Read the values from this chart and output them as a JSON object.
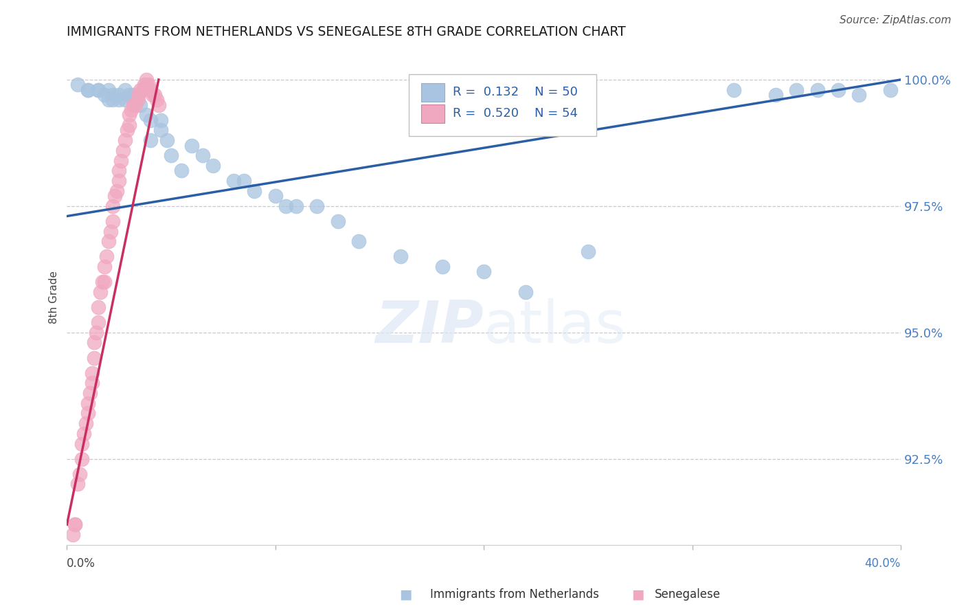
{
  "title": "IMMIGRANTS FROM NETHERLANDS VS SENEGALESE 8TH GRADE CORRELATION CHART",
  "source": "Source: ZipAtlas.com",
  "ylabel": "8th Grade",
  "ytick_labels": [
    "92.5%",
    "95.0%",
    "97.5%",
    "100.0%"
  ],
  "ytick_values": [
    0.925,
    0.95,
    0.975,
    1.0
  ],
  "xlim": [
    0.0,
    0.4
  ],
  "ylim": [
    0.908,
    1.006
  ],
  "legend_blue_r": "0.132",
  "legend_blue_n": "50",
  "legend_pink_r": "0.520",
  "legend_pink_n": "54",
  "blue_scatter_x": [
    0.005,
    0.01,
    0.01,
    0.015,
    0.015,
    0.018,
    0.02,
    0.02,
    0.022,
    0.022,
    0.025,
    0.025,
    0.028,
    0.028,
    0.03,
    0.032,
    0.032,
    0.035,
    0.038,
    0.04,
    0.04,
    0.045,
    0.045,
    0.048,
    0.05,
    0.055,
    0.06,
    0.065,
    0.07,
    0.08,
    0.085,
    0.09,
    0.1,
    0.105,
    0.11,
    0.12,
    0.13,
    0.14,
    0.16,
    0.18,
    0.2,
    0.22,
    0.25,
    0.32,
    0.34,
    0.35,
    0.36,
    0.37,
    0.38,
    0.395
  ],
  "blue_scatter_y": [
    0.999,
    0.998,
    0.998,
    0.998,
    0.998,
    0.997,
    0.998,
    0.996,
    0.997,
    0.996,
    0.997,
    0.996,
    0.996,
    0.998,
    0.997,
    0.996,
    0.997,
    0.995,
    0.993,
    0.992,
    0.988,
    0.99,
    0.992,
    0.988,
    0.985,
    0.982,
    0.987,
    0.985,
    0.983,
    0.98,
    0.98,
    0.978,
    0.977,
    0.975,
    0.975,
    0.975,
    0.972,
    0.968,
    0.965,
    0.963,
    0.962,
    0.958,
    0.966,
    0.998,
    0.997,
    0.998,
    0.998,
    0.998,
    0.997,
    0.998
  ],
  "pink_scatter_x": [
    0.003,
    0.004,
    0.005,
    0.006,
    0.007,
    0.007,
    0.008,
    0.009,
    0.01,
    0.01,
    0.011,
    0.012,
    0.012,
    0.013,
    0.013,
    0.014,
    0.015,
    0.015,
    0.016,
    0.017,
    0.018,
    0.018,
    0.019,
    0.02,
    0.021,
    0.022,
    0.022,
    0.023,
    0.024,
    0.025,
    0.025,
    0.026,
    0.027,
    0.028,
    0.029,
    0.03,
    0.03,
    0.031,
    0.032,
    0.033,
    0.034,
    0.034,
    0.035,
    0.036,
    0.037,
    0.038,
    0.038,
    0.039,
    0.04,
    0.041,
    0.042,
    0.043,
    0.044,
    0.004
  ],
  "pink_scatter_y": [
    0.91,
    0.912,
    0.92,
    0.922,
    0.925,
    0.928,
    0.93,
    0.932,
    0.934,
    0.936,
    0.938,
    0.94,
    0.942,
    0.945,
    0.948,
    0.95,
    0.952,
    0.955,
    0.958,
    0.96,
    0.96,
    0.963,
    0.965,
    0.968,
    0.97,
    0.972,
    0.975,
    0.977,
    0.978,
    0.98,
    0.982,
    0.984,
    0.986,
    0.988,
    0.99,
    0.991,
    0.993,
    0.994,
    0.995,
    0.995,
    0.996,
    0.997,
    0.998,
    0.998,
    0.999,
    0.999,
    1.0,
    0.999,
    0.998,
    0.997,
    0.997,
    0.996,
    0.995,
    0.912
  ],
  "blue_line_x": [
    0.0,
    0.4
  ],
  "blue_line_y": [
    0.973,
    1.0
  ],
  "pink_line_x": [
    0.0,
    0.044
  ],
  "pink_line_y": [
    0.912,
    1.0
  ],
  "blue_color": "#a8c4e0",
  "pink_color": "#f0a8c0",
  "blue_line_color": "#2a5fa5",
  "pink_line_color": "#c83060",
  "background_color": "#ffffff",
  "grid_color": "#c8c8d0"
}
